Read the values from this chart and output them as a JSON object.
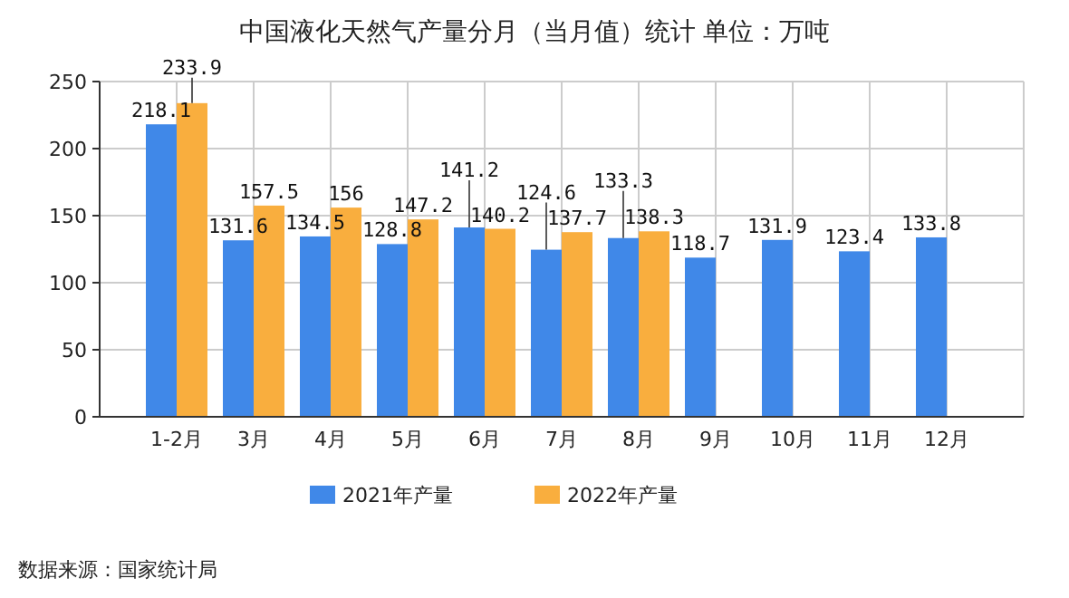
{
  "chart_data": {
    "type": "bar",
    "title": "中国液化天然气产量分月（当月值）统计 单位：万吨",
    "categories": [
      "1-2月",
      "3月",
      "4月",
      "5月",
      "6月",
      "7月",
      "8月",
      "9月",
      "10月",
      "11月",
      "12月"
    ],
    "series": [
      {
        "name": "2021年产量",
        "color": "#4088e8",
        "values": [
          218.1,
          131.6,
          134.5,
          128.8,
          141.2,
          124.6,
          133.3,
          118.7,
          131.9,
          123.4,
          133.8
        ]
      },
      {
        "name": "2022年产量",
        "color": "#f9ae3e",
        "values": [
          233.9,
          157.5,
          156,
          147.2,
          140.2,
          137.7,
          138.3,
          null,
          null,
          null,
          null
        ]
      }
    ],
    "ylim": [
      0,
      250
    ],
    "yticks": [
      0,
      50,
      100,
      150,
      200,
      250
    ],
    "grid": true,
    "legend": "bottom",
    "data_labels": true,
    "annotations": [
      "数据来源：国家统计局"
    ]
  }
}
